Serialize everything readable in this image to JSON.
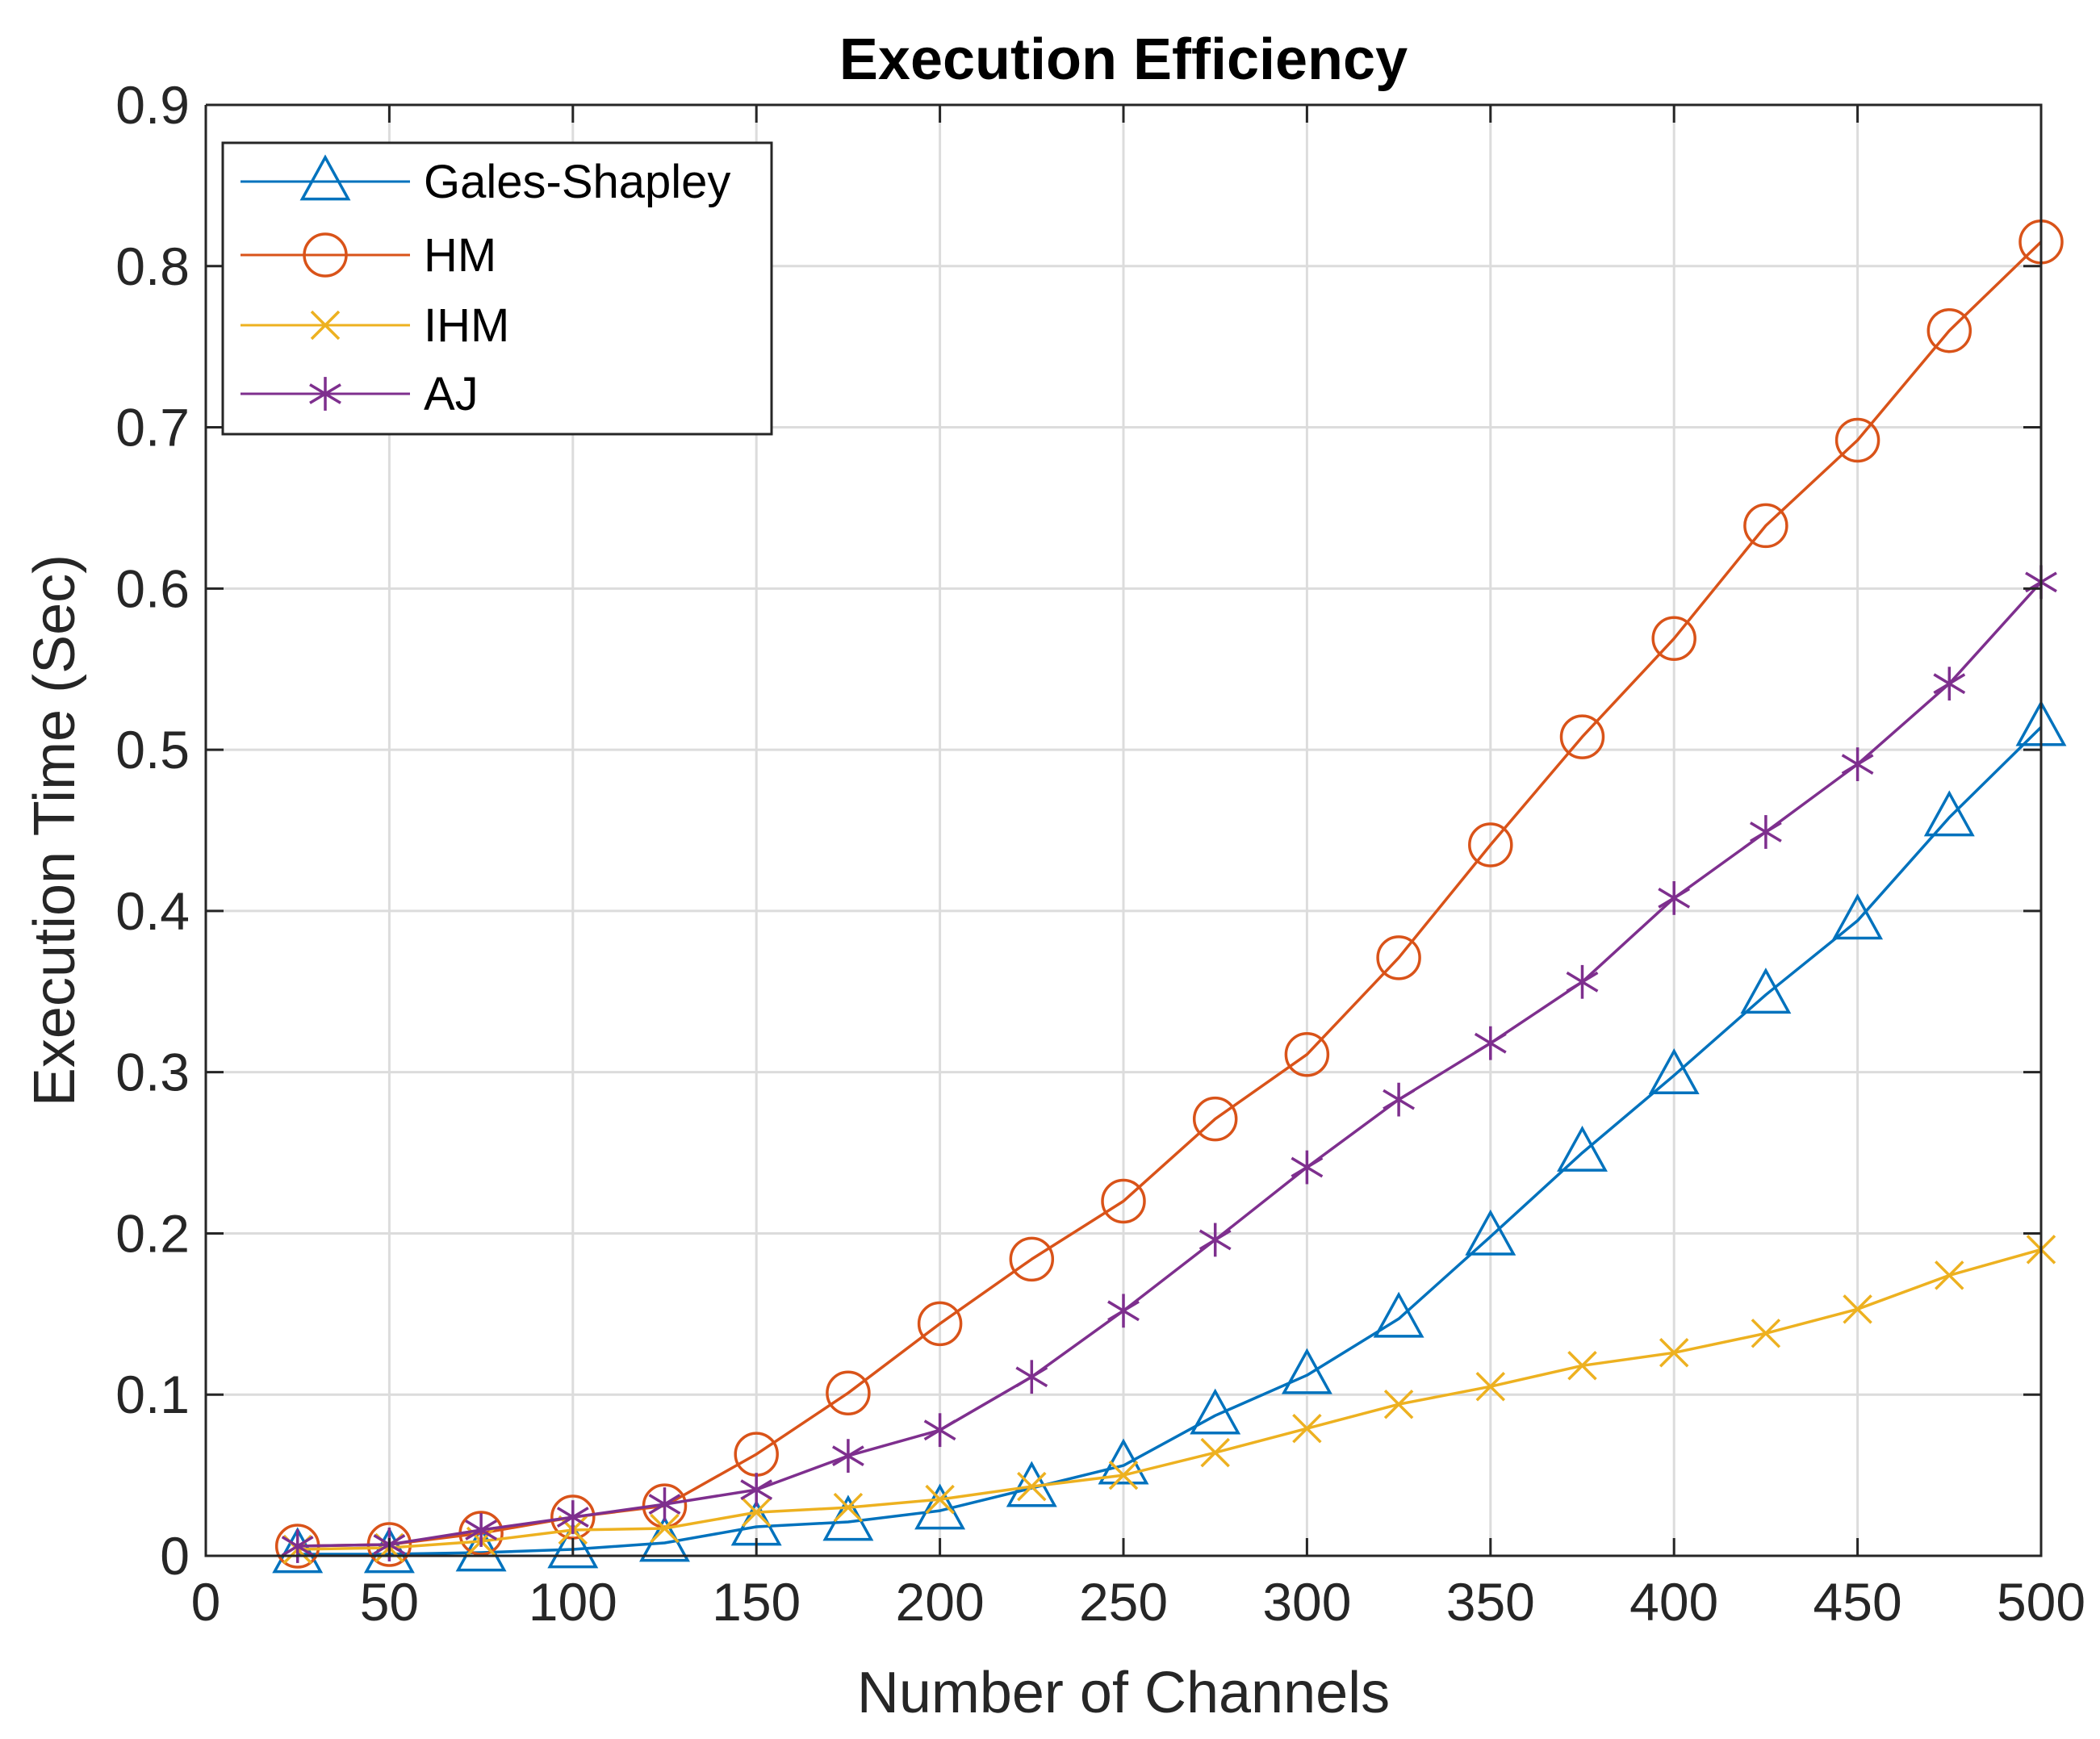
{
  "chart_data": {
    "type": "line",
    "title": "Execution Efficiency",
    "xlabel": "Number of Channels",
    "ylabel": "Execution Time (Sec)",
    "xlim": [
      0,
      500
    ],
    "ylim": [
      0,
      0.9
    ],
    "xticks": [
      0,
      50,
      100,
      150,
      200,
      250,
      300,
      350,
      400,
      450,
      500
    ],
    "xtick_labels": [
      "0",
      "50",
      "100",
      "150",
      "200",
      "250",
      "300",
      "350",
      "400",
      "450",
      "500"
    ],
    "yticks": [
      0,
      0.1,
      0.2,
      0.3,
      0.4,
      0.5,
      0.6,
      0.7,
      0.8,
      0.9
    ],
    "ytick_labels": [
      "0",
      "0.1",
      "0.2",
      "0.3",
      "0.4",
      "0.5",
      "0.6",
      "0.7",
      "0.8",
      "0.9"
    ],
    "grid": true,
    "legend_position": "top-left",
    "x": [
      25,
      50,
      75,
      100,
      125,
      150,
      175,
      200,
      225,
      250,
      275,
      300,
      325,
      350,
      375,
      400,
      425,
      450,
      475,
      500
    ],
    "series": [
      {
        "name": "Gales-Shapley",
        "color": "#0072BD",
        "marker": "triangle",
        "values": [
          0.001,
          0.001,
          0.002,
          0.004,
          0.008,
          0.018,
          0.021,
          0.028,
          0.042,
          0.056,
          0.087,
          0.112,
          0.147,
          0.198,
          0.25,
          0.298,
          0.348,
          0.394,
          0.458,
          0.514
        ]
      },
      {
        "name": "HM",
        "color": "#D95319",
        "marker": "circle",
        "values": [
          0.006,
          0.007,
          0.014,
          0.024,
          0.031,
          0.063,
          0.101,
          0.144,
          0.184,
          0.22,
          0.271,
          0.311,
          0.371,
          0.441,
          0.508,
          0.569,
          0.639,
          0.692,
          0.76,
          0.815
        ]
      },
      {
        "name": "IHM",
        "color": "#EDB120",
        "marker": "x",
        "values": [
          0.004,
          0.005,
          0.009,
          0.016,
          0.017,
          0.027,
          0.03,
          0.035,
          0.043,
          0.05,
          0.064,
          0.079,
          0.094,
          0.105,
          0.118,
          0.126,
          0.138,
          0.153,
          0.174,
          0.19
        ]
      },
      {
        "name": "AJ",
        "color": "#7E2F8E",
        "marker": "asterisk",
        "values": [
          0.006,
          0.007,
          0.016,
          0.024,
          0.032,
          0.041,
          0.062,
          0.078,
          0.111,
          0.152,
          0.196,
          0.241,
          0.283,
          0.318,
          0.356,
          0.408,
          0.449,
          0.491,
          0.541,
          0.604
        ]
      }
    ]
  }
}
